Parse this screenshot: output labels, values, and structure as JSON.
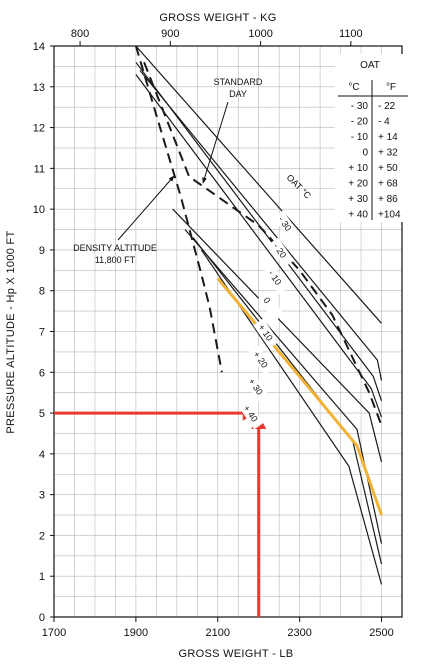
{
  "chart_data": {
    "type": "line",
    "title": "",
    "xlabel": "GROSS WEIGHT - LB",
    "x2label": "GROSS WEIGHT - KG",
    "ylabel": "PRESSURE ALTITUDE - Hp X 1000 FT",
    "xlim": [
      1700,
      2550
    ],
    "ylim": [
      0,
      14
    ],
    "x_ticks": [
      "1700",
      "1900",
      "2100",
      "2300",
      "2500"
    ],
    "x2_ticks": [
      "800",
      "900",
      "1000",
      "1100"
    ],
    "y_ticks": [
      "0",
      "1",
      "2",
      "3",
      "4",
      "5",
      "6",
      "7",
      "8",
      "9",
      "10",
      "11",
      "12",
      "13",
      "14"
    ],
    "grid": true,
    "series": [
      {
        "name": "-30",
        "points": [
          [
            1900,
            14
          ],
          [
            2500,
            7.2
          ]
        ]
      },
      {
        "name": "-20",
        "points": [
          [
            1910,
            13.4
          ],
          [
            2490,
            6.3
          ],
          [
            2500,
            5.8
          ]
        ]
      },
      {
        "name": "-10",
        "points": [
          [
            1900,
            13.6
          ],
          [
            2480,
            5.9
          ],
          [
            2500,
            5.3
          ]
        ]
      },
      {
        "name": "0",
        "points": [
          [
            1900,
            13.3
          ],
          [
            2475,
            5.6
          ],
          [
            2500,
            4.9
          ]
        ]
      },
      {
        "name": "+10",
        "points": [
          [
            1990,
            10.0
          ],
          [
            2470,
            5.0
          ],
          [
            2500,
            3.8
          ]
        ]
      },
      {
        "name": "+20",
        "points": [
          [
            2020,
            9.5
          ],
          [
            2440,
            4.6
          ],
          [
            2500,
            1.8
          ]
        ]
      },
      {
        "name": "+30",
        "points": [
          [
            2040,
            9.3
          ],
          [
            2430,
            4.3
          ],
          [
            2500,
            1.3
          ]
        ]
      },
      {
        "name": "+40",
        "points": [
          [
            2060,
            9.0
          ],
          [
            2420,
            3.7
          ],
          [
            2500,
            0.8
          ]
        ]
      }
    ],
    "highlight_line": [
      [
        2100,
        8.3
      ],
      [
        2300,
        5.9
      ],
      [
        2440,
        4.2
      ],
      [
        2500,
        2.5
      ]
    ],
    "boundary_dashed": [
      [
        1900,
        14
      ],
      [
        1950,
        12.3
      ],
      [
        2010,
        10.3
      ],
      [
        2060,
        8.4
      ],
      [
        2080,
        7.6
      ],
      [
        2110,
        6.0
      ]
    ],
    "standard_day_dashed": [
      [
        1920,
        13.6
      ],
      [
        2030,
        10.8
      ],
      [
        2200,
        9.6
      ],
      [
        2300,
        8.5
      ],
      [
        2380,
        7.4
      ],
      [
        2470,
        5.5
      ],
      [
        2500,
        4.7
      ]
    ],
    "example": {
      "pressure_altitude": 5,
      "gross_weight": 2200
    }
  },
  "annotations": {
    "standard_day_1": "STANDARD",
    "standard_day_2": "DAY",
    "density_altitude_1": "DENSITY ALTITUDE",
    "density_altitude_2": "11,800 FT",
    "oat_curve_label": "OAT °C"
  },
  "curve_labels": [
    "- 30",
    "- 20",
    "- 10",
    "0",
    "+ 10",
    "+ 20",
    "+ 30",
    "+ 40"
  ],
  "oat_table": {
    "title": "OAT",
    "header_c": "°C",
    "header_f": "°F",
    "rows": [
      {
        "c": "- 30",
        "f": "- 22"
      },
      {
        "c": "- 20",
        "f": "- 4"
      },
      {
        "c": "- 10",
        "f": "+ 14"
      },
      {
        "c": "0",
        "f": "+ 32"
      },
      {
        "c": "+ 10",
        "f": "+ 50"
      },
      {
        "c": "+ 20",
        "f": "+ 68"
      },
      {
        "c": "+ 30",
        "f": "+ 86"
      },
      {
        "c": "+ 40",
        "f": "+104"
      }
    ]
  },
  "colors": {
    "example_arrow": "#e8392e",
    "highlight": "#f2b233",
    "curve": "#1a1a1a",
    "grid": "#b8b8b8"
  }
}
